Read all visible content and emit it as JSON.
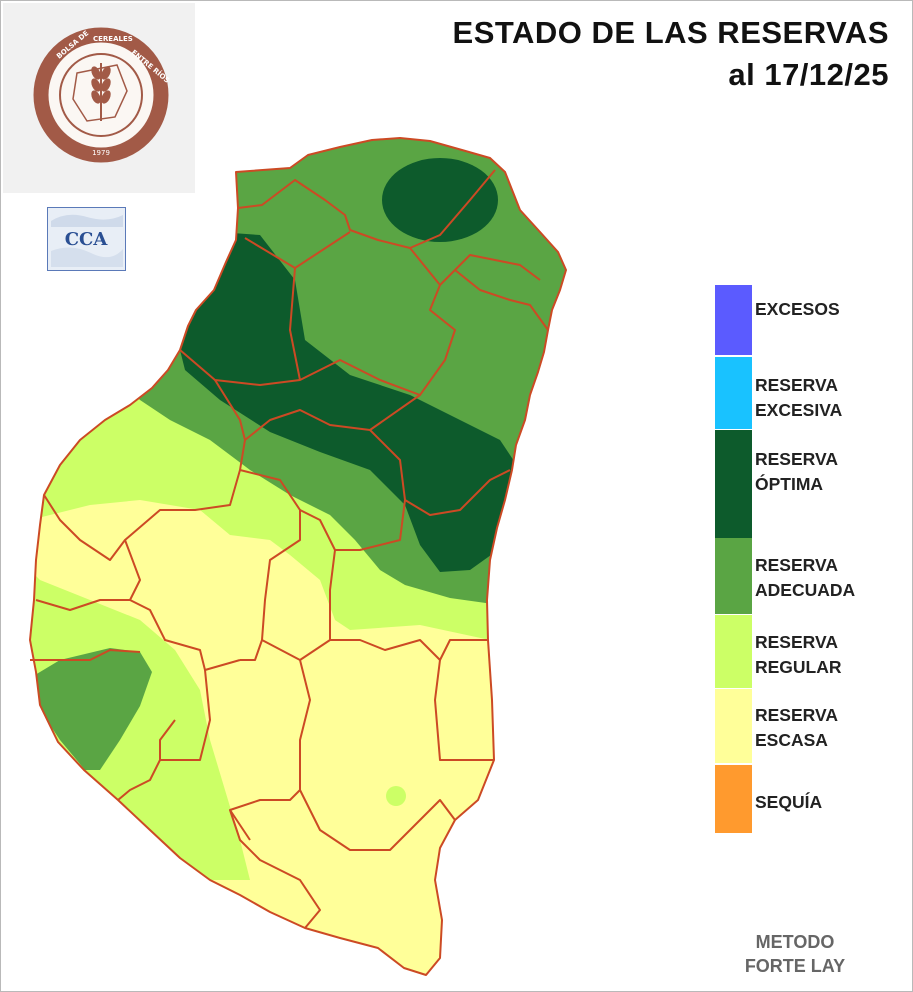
{
  "title": {
    "line1": "ESTADO DE LAS RESERVAS",
    "line2": "al 17/12/25"
  },
  "logo": {
    "icon": "wheat-seal-icon",
    "ring_text": "BOLSA DE CEREALES DE ENTRE RÍOS",
    "year": "1979",
    "color": "#a25a47"
  },
  "cca_logo": {
    "text": "CCA",
    "color": "#2a4f93"
  },
  "legend": {
    "items": [
      {
        "label": "EXCESOS",
        "color": "#5b5bff"
      },
      {
        "label": "RESERVA\nEXCESIVA",
        "color": "#19c2ff"
      },
      {
        "label": "RESERVA\nÓPTIMA",
        "color": "#0d5b2c"
      },
      {
        "label": "RESERVA\nADECUADA",
        "color": "#5aa544"
      },
      {
        "label": "RESERVA\nREGULAR",
        "color": "#ccff66"
      },
      {
        "label": "RESERVA\nESCASA",
        "color": "#ffff99"
      },
      {
        "label": "SEQUÍA",
        "color": "#ff9a2e"
      }
    ]
  },
  "method": {
    "line1": "METODO",
    "line2": "FORTE LAY"
  },
  "boundary_color": "#cc4a24"
}
